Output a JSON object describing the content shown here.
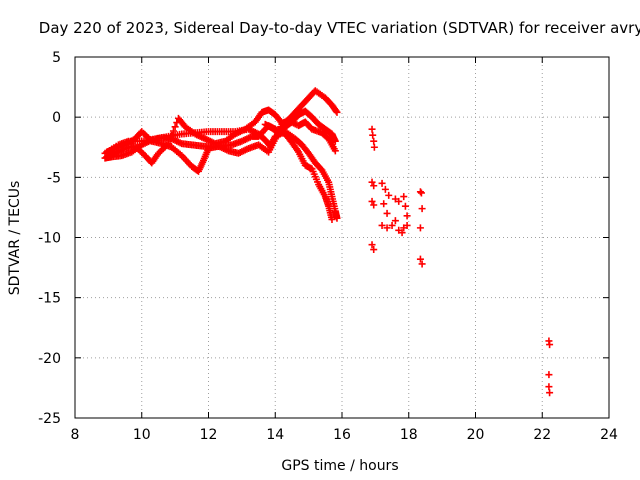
{
  "chart_data": {
    "type": "scatter",
    "title": "Day 220 of 2023, Sidereal Day-to-day VTEC variation (SDTVAR) for receiver avry",
    "xlabel": "GPS time / hours",
    "ylabel": "SDTVAR / TECUs",
    "xlim": [
      8,
      24
    ],
    "ylim": [
      -25,
      5
    ],
    "xticks": [
      8,
      10,
      12,
      14,
      16,
      18,
      20,
      22,
      24
    ],
    "yticks": [
      5,
      0,
      -5,
      -10,
      -15,
      -20,
      -25
    ],
    "grid": true,
    "marker": "+",
    "marker_color": "#ff0000",
    "series": [
      {
        "name": "track-a",
        "points": [
          [
            8.95,
            -2.9
          ],
          [
            9.2,
            -2.6
          ],
          [
            9.5,
            -2.3
          ],
          [
            9.8,
            -1.8
          ],
          [
            10.0,
            -1.2
          ],
          [
            10.3,
            -2.0
          ],
          [
            10.6,
            -2.2
          ],
          [
            10.9,
            -2.5
          ],
          [
            11.2,
            -3.2
          ],
          [
            11.5,
            -4.1
          ],
          [
            11.7,
            -4.5
          ],
          [
            11.85,
            -3.6
          ],
          [
            12.0,
            -2.6
          ],
          [
            12.3,
            -2.4
          ],
          [
            12.6,
            -2.8
          ],
          [
            12.9,
            -3.0
          ],
          [
            13.2,
            -2.6
          ],
          [
            13.5,
            -2.3
          ],
          [
            13.8,
            -2.9
          ],
          [
            14.0,
            -1.8
          ],
          [
            14.2,
            -0.6
          ],
          [
            14.4,
            -0.2
          ],
          [
            14.6,
            0.4
          ],
          [
            14.8,
            1.0
          ],
          [
            15.0,
            1.6
          ],
          [
            15.2,
            2.2
          ],
          [
            15.5,
            1.6
          ],
          [
            15.7,
            1.0
          ],
          [
            15.85,
            0.4
          ]
        ]
      },
      {
        "name": "track-b",
        "points": [
          [
            8.95,
            -3.3
          ],
          [
            9.2,
            -3.0
          ],
          [
            9.5,
            -2.6
          ],
          [
            9.8,
            -2.4
          ],
          [
            10.1,
            -3.2
          ],
          [
            10.3,
            -3.8
          ],
          [
            10.5,
            -3.0
          ],
          [
            10.8,
            -2.2
          ],
          [
            11.1,
            -0.1
          ],
          [
            11.3,
            -0.8
          ],
          [
            11.6,
            -1.4
          ],
          [
            11.9,
            -1.8
          ],
          [
            12.2,
            -2.2
          ],
          [
            12.5,
            -2.0
          ],
          [
            12.8,
            -1.4
          ],
          [
            13.1,
            -1.0
          ],
          [
            13.4,
            -0.4
          ],
          [
            13.6,
            0.4
          ],
          [
            13.8,
            0.6
          ],
          [
            14.0,
            0.2
          ],
          [
            14.2,
            -0.5
          ],
          [
            14.4,
            -0.3
          ],
          [
            14.7,
            -0.7
          ],
          [
            14.9,
            -0.4
          ],
          [
            15.1,
            -1.0
          ],
          [
            15.4,
            -1.3
          ],
          [
            15.6,
            -1.8
          ],
          [
            15.8,
            -2.8
          ]
        ]
      },
      {
        "name": "track-c",
        "points": [
          [
            8.9,
            -3.0
          ],
          [
            9.3,
            -2.3
          ],
          [
            9.6,
            -2.0
          ],
          [
            10.0,
            -2.0
          ],
          [
            10.4,
            -1.8
          ],
          [
            10.8,
            -1.6
          ],
          [
            11.2,
            -1.4
          ],
          [
            11.6,
            -1.3
          ],
          [
            12.0,
            -1.2
          ],
          [
            12.4,
            -1.2
          ],
          [
            12.8,
            -1.2
          ],
          [
            13.2,
            -1.0
          ],
          [
            13.5,
            -1.4
          ],
          [
            13.7,
            -1.9
          ],
          [
            13.85,
            -2.4
          ],
          [
            14.0,
            -1.6
          ],
          [
            14.3,
            -1.2
          ],
          [
            14.6,
            -1.8
          ],
          [
            14.8,
            -2.3
          ],
          [
            15.0,
            -3.0
          ],
          [
            15.2,
            -3.8
          ],
          [
            15.4,
            -4.4
          ],
          [
            15.6,
            -5.4
          ],
          [
            15.7,
            -6.6
          ],
          [
            15.8,
            -7.8
          ],
          [
            15.85,
            -8.4
          ]
        ]
      },
      {
        "name": "track-d",
        "points": [
          [
            8.9,
            -3.4
          ],
          [
            9.1,
            -3.3
          ],
          [
            9.4,
            -3.2
          ],
          [
            9.7,
            -2.9
          ],
          [
            10.0,
            -2.3
          ],
          [
            10.3,
            -1.9
          ],
          [
            10.6,
            -1.7
          ],
          [
            10.9,
            -1.8
          ],
          [
            11.2,
            -2.2
          ],
          [
            11.5,
            -2.3
          ],
          [
            11.8,
            -2.4
          ],
          [
            12.1,
            -2.5
          ],
          [
            12.4,
            -2.4
          ],
          [
            12.7,
            -2.3
          ],
          [
            13.0,
            -2.0
          ],
          [
            13.3,
            -1.6
          ],
          [
            13.5,
            -1.6
          ],
          [
            13.8,
            -0.7
          ],
          [
            14.0,
            -1.0
          ],
          [
            14.3,
            -1.4
          ],
          [
            14.5,
            -2.1
          ],
          [
            14.7,
            -2.9
          ],
          [
            14.9,
            -4.0
          ],
          [
            15.1,
            -4.3
          ],
          [
            15.3,
            -5.6
          ],
          [
            15.5,
            -6.6
          ],
          [
            15.6,
            -7.4
          ],
          [
            15.7,
            -8.5
          ]
        ]
      },
      {
        "name": "track-e",
        "points": [
          [
            13.7,
            -0.6
          ],
          [
            13.9,
            -0.9
          ],
          [
            14.1,
            -1.3
          ],
          [
            14.3,
            -0.8
          ],
          [
            14.5,
            -0.4
          ],
          [
            14.7,
            0.2
          ],
          [
            14.9,
            0.5
          ],
          [
            15.1,
            0.0
          ],
          [
            15.3,
            -0.6
          ],
          [
            15.5,
            -1.0
          ],
          [
            15.7,
            -1.4
          ],
          [
            15.8,
            -2.0
          ]
        ]
      },
      {
        "name": "cluster-16.9-18.4",
        "points": [
          [
            16.9,
            -1.0
          ],
          [
            16.92,
            -1.5
          ],
          [
            16.95,
            -2.0
          ],
          [
            16.97,
            -2.5
          ],
          [
            16.9,
            -5.4
          ],
          [
            16.95,
            -5.7
          ],
          [
            16.9,
            -7.0
          ],
          [
            16.95,
            -7.3
          ],
          [
            16.9,
            -10.6
          ],
          [
            16.95,
            -11.0
          ],
          [
            17.2,
            -5.5
          ],
          [
            17.3,
            -6.0
          ],
          [
            17.4,
            -6.5
          ],
          [
            17.25,
            -7.2
          ],
          [
            17.35,
            -8.0
          ],
          [
            17.2,
            -9.0
          ],
          [
            17.35,
            -9.2
          ],
          [
            17.5,
            -9.0
          ],
          [
            17.6,
            -8.6
          ],
          [
            17.6,
            -6.8
          ],
          [
            17.7,
            -7.0
          ],
          [
            17.7,
            -9.4
          ],
          [
            17.8,
            -9.6
          ],
          [
            17.85,
            -9.2
          ],
          [
            17.85,
            -6.6
          ],
          [
            17.9,
            -7.4
          ],
          [
            17.95,
            -8.2
          ],
          [
            17.95,
            -9.0
          ],
          [
            18.35,
            -6.2
          ],
          [
            18.38,
            -6.3
          ],
          [
            18.4,
            -7.6
          ],
          [
            18.35,
            -9.2
          ],
          [
            18.35,
            -11.8
          ],
          [
            18.4,
            -12.2
          ]
        ]
      },
      {
        "name": "cluster-22.2",
        "points": [
          [
            22.2,
            -18.6
          ],
          [
            22.22,
            -18.9
          ],
          [
            22.2,
            -21.4
          ],
          [
            22.2,
            -22.4
          ],
          [
            22.22,
            -22.9
          ]
        ]
      }
    ]
  }
}
